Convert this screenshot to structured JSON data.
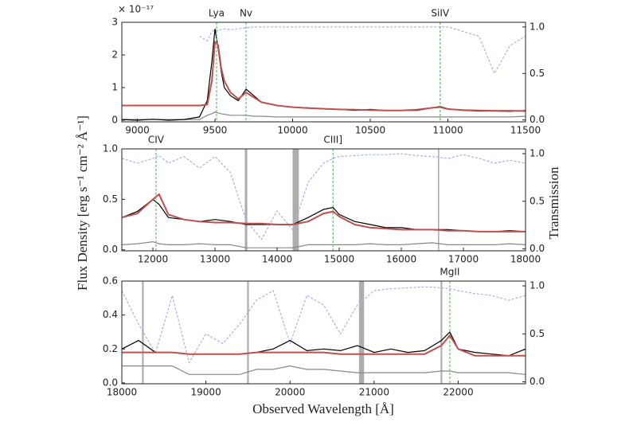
{
  "ylabel": "Flux Density [erg s⁻¹ cm⁻² Å⁻¹]",
  "y2label": "Transmission",
  "xlabel": "Observed Wavelength [Å]",
  "chart_data": [
    {
      "type": "line",
      "y_multiplier": "× 10⁻¹⁷",
      "x": [
        8900,
        9000,
        9100,
        9200,
        9300,
        9400,
        9450,
        9480,
        9500,
        9520,
        9540,
        9560,
        9600,
        9650,
        9700,
        9750,
        9800,
        9900,
        10000,
        10100,
        10200,
        10300,
        10400,
        10500,
        10600,
        10700,
        10800,
        10900,
        10950,
        11000,
        11100,
        11200,
        11300,
        11400,
        11500
      ],
      "series": [
        {
          "color": "#aab0ee",
          "style": "dashed",
          "axis": "y2",
          "values": [
            null,
            null,
            null,
            null,
            null,
            0.9,
            0.85,
            0.95,
            0.97,
            0.96,
            0.97,
            0.98,
            0.97,
            0.98,
            0.99,
            1.0,
            1.0,
            1.0,
            1.0,
            1.0,
            1.0,
            1.0,
            1.0,
            1.0,
            1.0,
            1.0,
            1.0,
            1.0,
            1.0,
            1.0,
            0.95,
            0.9,
            0.5,
            0.8,
            0.9
          ]
        },
        {
          "color": "#888888",
          "values": [
            0.02,
            0.02,
            0.02,
            0.02,
            0.02,
            0.02,
            0.15,
            0.2,
            0.25,
            0.22,
            0.2,
            0.18,
            0.15,
            0.15,
            0.15,
            0.12,
            0.12,
            0.1,
            0.1,
            0.1,
            0.1,
            0.1,
            0.1,
            0.1,
            0.1,
            0.1,
            0.1,
            0.1,
            0.1,
            0.1,
            0.1,
            0.1,
            0.1,
            0.1,
            0.12
          ]
        },
        {
          "color": "#000000",
          "values": [
            0.02,
            0.0,
            0.03,
            0.0,
            0.02,
            0.1,
            0.6,
            1.8,
            2.8,
            2.2,
            1.5,
            1.0,
            0.75,
            0.6,
            0.95,
            0.75,
            0.55,
            0.45,
            0.4,
            0.38,
            0.35,
            0.33,
            0.3,
            0.33,
            0.3,
            0.3,
            0.3,
            0.38,
            0.42,
            0.35,
            0.3,
            0.28,
            0.28,
            0.27,
            0.3
          ]
        },
        {
          "color": "#c0504d",
          "values": [
            0.45,
            0.45,
            0.45,
            0.45,
            0.45,
            0.45,
            0.48,
            1.2,
            2.4,
            2.3,
            1.6,
            1.2,
            0.85,
            0.65,
            0.85,
            0.7,
            0.55,
            0.45,
            0.4,
            0.37,
            0.35,
            0.33,
            0.32,
            0.31,
            0.3,
            0.3,
            0.32,
            0.38,
            0.4,
            0.34,
            0.31,
            0.3,
            0.29,
            0.29,
            0.28
          ]
        }
      ],
      "annotations": [
        {
          "label": "Lya",
          "x": 9510
        },
        {
          "label": "Nv",
          "x": 9700
        },
        {
          "label": "SiIV",
          "x": 10950
        }
      ],
      "masked": [],
      "xlim": [
        8900,
        11500
      ],
      "xticks": [
        9000,
        9500,
        10000,
        10500,
        11000,
        11500
      ],
      "ylim": [
        -0.05,
        3
      ],
      "yticks": [
        0,
        1,
        2,
        3
      ],
      "y2lim": [
        -0.02,
        1.05
      ],
      "y2ticks": [
        {
          "value": 0,
          "label": "0.0"
        },
        {
          "value": 0.5,
          "label": "0.5"
        },
        {
          "value": 1,
          "label": "1.0"
        }
      ]
    },
    {
      "type": "line",
      "x": [
        11500,
        11750,
        12000,
        12100,
        12250,
        12500,
        12750,
        13000,
        13250,
        13500,
        13750,
        14000,
        14250,
        14500,
        14750,
        14900,
        15000,
        15250,
        15500,
        15750,
        16000,
        16250,
        16500,
        16750,
        17000,
        17250,
        17500,
        17750,
        18000
      ],
      "series": [
        {
          "color": "#aab0ee",
          "style": "dashed",
          "axis": "y2",
          "values": [
            0.95,
            0.9,
            0.95,
            0.98,
            0.9,
            0.97,
            0.85,
            0.97,
            0.8,
            0.3,
            0.1,
            0.4,
            0.2,
            0.7,
            0.9,
            0.95,
            0.97,
            0.98,
            0.99,
            0.99,
            1.0,
            0.98,
            0.97,
            0.95,
            0.99,
            0.95,
            0.9,
            0.93,
            0.9
          ]
        },
        {
          "color": "#888888",
          "values": [
            0.05,
            0.06,
            0.08,
            0.06,
            0.05,
            0.05,
            0.06,
            0.05,
            0.05,
            0.02,
            0.02,
            0.02,
            0.02,
            0.05,
            0.05,
            0.05,
            0.05,
            0.05,
            0.06,
            0.05,
            0.05,
            0.06,
            0.07,
            0.05,
            0.05,
            0.05,
            0.05,
            0.06,
            0.05
          ]
        },
        {
          "color": "#000000",
          "values": [
            0.32,
            0.38,
            0.5,
            0.45,
            0.32,
            0.3,
            0.28,
            0.3,
            0.28,
            0.25,
            0.25,
            0.25,
            0.25,
            0.32,
            0.4,
            0.42,
            0.35,
            0.28,
            0.25,
            0.22,
            0.22,
            0.2,
            0.2,
            0.2,
            0.19,
            0.18,
            0.18,
            0.19,
            0.18
          ]
        },
        {
          "color": "#c0504d",
          "values": [
            0.32,
            0.36,
            0.5,
            0.55,
            0.35,
            0.3,
            0.28,
            0.27,
            0.27,
            0.26,
            0.26,
            0.25,
            0.25,
            0.28,
            0.36,
            0.38,
            0.33,
            0.25,
            0.22,
            0.21,
            0.2,
            0.2,
            0.2,
            0.19,
            0.19,
            0.18,
            0.18,
            0.18,
            0.18
          ]
        }
      ],
      "annotations": [
        {
          "label": "CIV",
          "x": 12050
        },
        {
          "label": "CIII]",
          "x": 14900
        }
      ],
      "masked": [
        [
          13480,
          13520
        ],
        [
          14250,
          14350
        ],
        [
          16590,
          16610
        ]
      ],
      "xlim": [
        11500,
        18000
      ],
      "xticks": [
        12000,
        13000,
        14000,
        15000,
        16000,
        17000,
        18000
      ],
      "ylim": [
        -0.01,
        1.0
      ],
      "yticks": [
        {
          "value": 0,
          "label": "0.0"
        },
        {
          "value": 0.5,
          "label": "0.5"
        },
        {
          "value": 1,
          "label": "1.0"
        }
      ],
      "y2lim": [
        -0.02,
        1.05
      ],
      "y2ticks": [
        {
          "value": 0,
          "label": "0.0"
        },
        {
          "value": 0.5,
          "label": "0.5"
        },
        {
          "value": 1,
          "label": "1.0"
        }
      ]
    },
    {
      "type": "line",
      "x": [
        18000,
        18200,
        18400,
        18600,
        18800,
        19000,
        19200,
        19400,
        19600,
        19800,
        20000,
        20200,
        20400,
        20600,
        20800,
        21000,
        21200,
        21400,
        21600,
        21800,
        21900,
        22000,
        22200,
        22400,
        22600,
        22800
      ],
      "series": [
        {
          "color": "#aab0ee",
          "style": "dashed",
          "axis": "y2",
          "values": [
            0.95,
            0.6,
            0.3,
            0.9,
            0.2,
            0.5,
            0.4,
            0.6,
            0.85,
            0.95,
            0.4,
            0.9,
            0.8,
            0.5,
            0.8,
            0.95,
            0.97,
            0.98,
            0.99,
            0.98,
            0.97,
            0.95,
            0.92,
            0.9,
            0.85,
            0.9
          ]
        },
        {
          "color": "#888888",
          "values": [
            0.1,
            0.1,
            0.1,
            0.1,
            0.05,
            0.05,
            0.05,
            0.05,
            0.08,
            0.08,
            0.1,
            0.08,
            0.08,
            0.07,
            0.06,
            0.06,
            0.06,
            0.06,
            0.06,
            0.07,
            0.07,
            0.06,
            0.06,
            0.06,
            0.06,
            0.05
          ]
        },
        {
          "color": "#000000",
          "values": [
            0.2,
            0.25,
            0.18,
            0.18,
            0.17,
            0.17,
            0.17,
            0.17,
            0.18,
            0.2,
            0.25,
            0.19,
            0.2,
            0.19,
            0.22,
            0.18,
            0.2,
            0.18,
            0.19,
            0.25,
            0.3,
            0.2,
            0.18,
            0.17,
            0.16,
            0.2
          ]
        },
        {
          "color": "#c0504d",
          "values": [
            0.18,
            0.18,
            0.18,
            0.18,
            0.17,
            0.17,
            0.17,
            0.17,
            0.18,
            0.18,
            0.18,
            0.18,
            0.18,
            0.17,
            0.17,
            0.17,
            0.17,
            0.17,
            0.17,
            0.22,
            0.28,
            0.2,
            0.16,
            0.16,
            0.16,
            0.16
          ]
        }
      ],
      "annotations": [
        {
          "label": "MgII",
          "x": 21900
        }
      ],
      "masked": [
        [
          18240,
          18260
        ],
        [
          19490,
          19510
        ],
        [
          20820,
          20880
        ],
        [
          21790,
          21810
        ]
      ],
      "xlim": [
        18000,
        22800
      ],
      "xticks": [
        18000,
        19000,
        20000,
        21000,
        22000
      ],
      "ylim": [
        -0.005,
        0.6
      ],
      "yticks": [
        {
          "value": 0,
          "label": "0.0"
        },
        {
          "value": 0.2,
          "label": "0.2"
        },
        {
          "value": 0.4,
          "label": "0.4"
        },
        {
          "value": 0.6,
          "label": "0.6"
        }
      ],
      "y2lim": [
        -0.02,
        1.05
      ],
      "y2ticks": [
        {
          "value": 0,
          "label": "0.0"
        },
        {
          "value": 0.5,
          "label": "0.5"
        },
        {
          "value": 1,
          "label": "1.0"
        }
      ]
    }
  ]
}
